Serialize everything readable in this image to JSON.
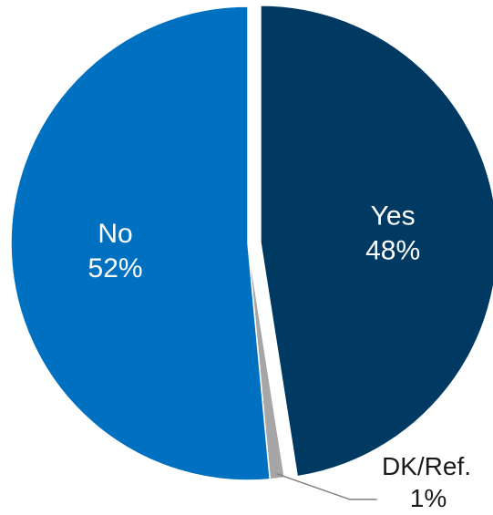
{
  "chart_data": {
    "type": "pie",
    "slices": [
      {
        "label": "Yes",
        "value_text": "48%",
        "value": 48,
        "color": "#003a63",
        "exploded": true,
        "label_position": "inside"
      },
      {
        "label": "DK/Ref.",
        "value_text": "1%",
        "value": 1,
        "color": "#a6a6a6",
        "exploded": false,
        "label_position": "outside"
      },
      {
        "label": "No",
        "value_text": "52%",
        "value": 52,
        "color": "#0070c0",
        "exploded": false,
        "label_position": "inside"
      }
    ],
    "legend": "none",
    "start_angle": "12 o'clock",
    "direction": "clockwise"
  }
}
